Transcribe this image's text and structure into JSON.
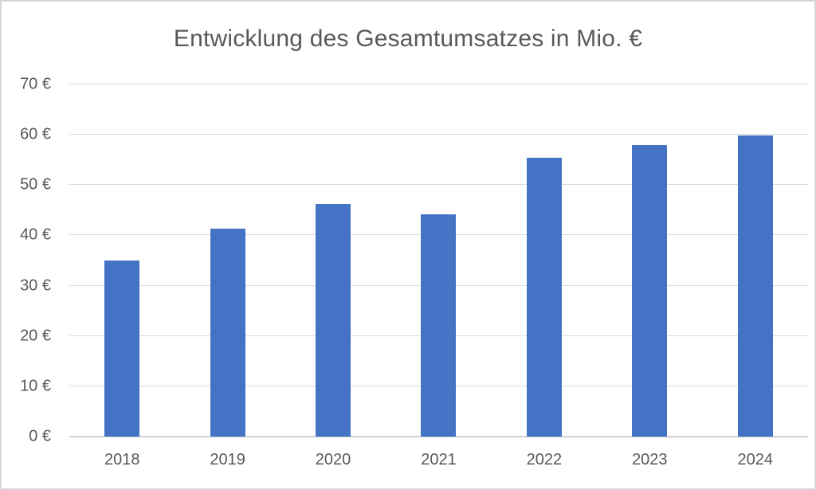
{
  "chart_data": {
    "type": "bar",
    "title": "Entwicklung des Gesamtumsatzes in Mio. €",
    "xlabel": "",
    "ylabel": "",
    "categories": [
      "2018",
      "2019",
      "2020",
      "2021",
      "2022",
      "2023",
      "2024"
    ],
    "values": [
      35,
      41.3,
      46.2,
      44.2,
      55.5,
      58,
      59.8
    ],
    "series_name": "Gesamtumsatz in Mio. €",
    "ylim": [
      0,
      70
    ],
    "y_tick_values": [
      0,
      10,
      20,
      30,
      40,
      50,
      60,
      70
    ],
    "y_tick_labels": [
      "0 €",
      "10 €",
      "20 €",
      "30 €",
      "40 €",
      "50 €",
      "60 €",
      "70 €"
    ],
    "grid": true,
    "legend_position": "none",
    "colors": {
      "bar": "#4472C4",
      "gridline": "#d9d9d9",
      "axis_line": "#d0d0d0",
      "text": "#595959",
      "frame_border": "#d6d6d6",
      "background": "#ffffff"
    }
  }
}
